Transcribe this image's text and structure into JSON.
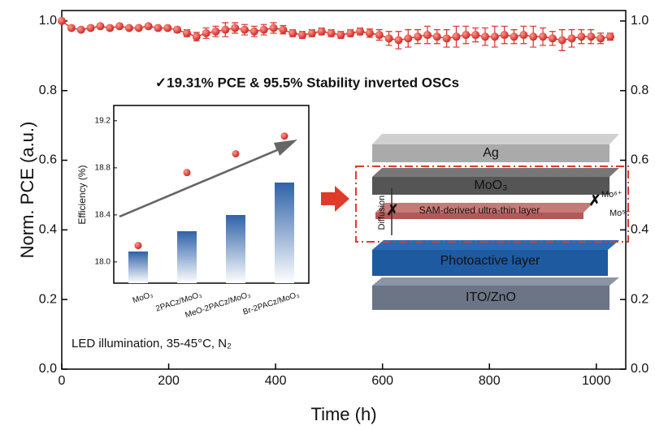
{
  "chart_data": [
    {
      "type": "scatter",
      "xlabel": "Time (h)",
      "ylabel": "Norm. PCE (a.u.)",
      "annotations": [
        "✓19.31% PCE & 95.5% Stability inverted OSCs",
        "LED illumination, 35-45°C, N₂"
      ],
      "x": [
        0,
        18,
        36,
        54,
        72,
        90,
        108,
        126,
        144,
        162,
        180,
        198,
        216,
        234,
        252,
        270,
        288,
        306,
        324,
        342,
        360,
        378,
        396,
        414,
        432,
        450,
        468,
        486,
        504,
        522,
        540,
        558,
        576,
        594,
        612,
        630,
        648,
        666,
        684,
        702,
        720,
        738,
        756,
        774,
        792,
        810,
        828,
        846,
        864,
        882,
        900,
        918,
        936,
        954,
        972,
        990,
        1008,
        1026
      ],
      "series": [
        {
          "color": "#d9302b",
          "values": [
            1.0,
            0.98,
            0.975,
            0.98,
            0.985,
            0.98,
            0.985,
            0.98,
            0.98,
            0.985,
            0.98,
            0.98,
            0.975,
            0.965,
            0.955,
            0.965,
            0.97,
            0.975,
            0.98,
            0.975,
            0.97,
            0.975,
            0.98,
            0.975,
            0.965,
            0.96,
            0.965,
            0.97,
            0.965,
            0.96,
            0.965,
            0.97,
            0.965,
            0.96,
            0.95,
            0.945,
            0.95,
            0.955,
            0.96,
            0.955,
            0.95,
            0.955,
            0.96,
            0.96,
            0.955,
            0.955,
            0.96,
            0.955,
            0.96,
            0.955,
            0.955,
            0.95,
            0.945,
            0.95,
            0.955,
            0.955,
            0.95,
            0.955
          ],
          "errors": [
            0.005,
            0.005,
            0.005,
            0.005,
            0.005,
            0.005,
            0.005,
            0.005,
            0.005,
            0.005,
            0.005,
            0.005,
            0.008,
            0.01,
            0.012,
            0.015,
            0.015,
            0.02,
            0.015,
            0.015,
            0.015,
            0.015,
            0.015,
            0.012,
            0.01,
            0.01,
            0.01,
            0.01,
            0.01,
            0.01,
            0.01,
            0.01,
            0.012,
            0.015,
            0.02,
            0.025,
            0.025,
            0.02,
            0.025,
            0.02,
            0.025,
            0.03,
            0.025,
            0.02,
            0.025,
            0.03,
            0.025,
            0.02,
            0.025,
            0.03,
            0.025,
            0.02,
            0.03,
            0.025,
            0.02,
            0.02,
            0.015,
            0.01
          ]
        }
      ],
      "xlim": [
        0,
        1055
      ],
      "xticks": [
        0,
        200,
        400,
        600,
        800,
        1000
      ],
      "ylim": [
        0,
        1.03
      ],
      "yticks": [
        {
          "value": 0,
          "label": "0.0"
        },
        0.2,
        0.4,
        0.6,
        0.8,
        {
          "value": 1,
          "label": "1.0"
        }
      ]
    },
    {
      "type": "dot",
      "ylabel": "Efficiency (%)",
      "categories": [
        "MoO₃",
        "2PACz/MoO₃",
        "MeO-2PACz/MoO₃",
        "Br-2PACz/MoO₃"
      ],
      "values": [
        18.14,
        18.76,
        18.92,
        19.07
      ],
      "color": "#d9302b",
      "ylim": [
        17.82,
        19.33
      ],
      "yticks": [
        {
          "value": 18,
          "label": "18.0"
        },
        18.4,
        18.8,
        19.2
      ]
    }
  ],
  "diagram": {
    "layers": [
      "Ag",
      "MoO₃",
      "SAM-derived ultra-thin layer",
      "Photoactive layer",
      "ITO/ZnO"
    ],
    "labels": [
      "Diffusion",
      "Mo⁶⁺",
      "Mo⁵⁺"
    ]
  }
}
